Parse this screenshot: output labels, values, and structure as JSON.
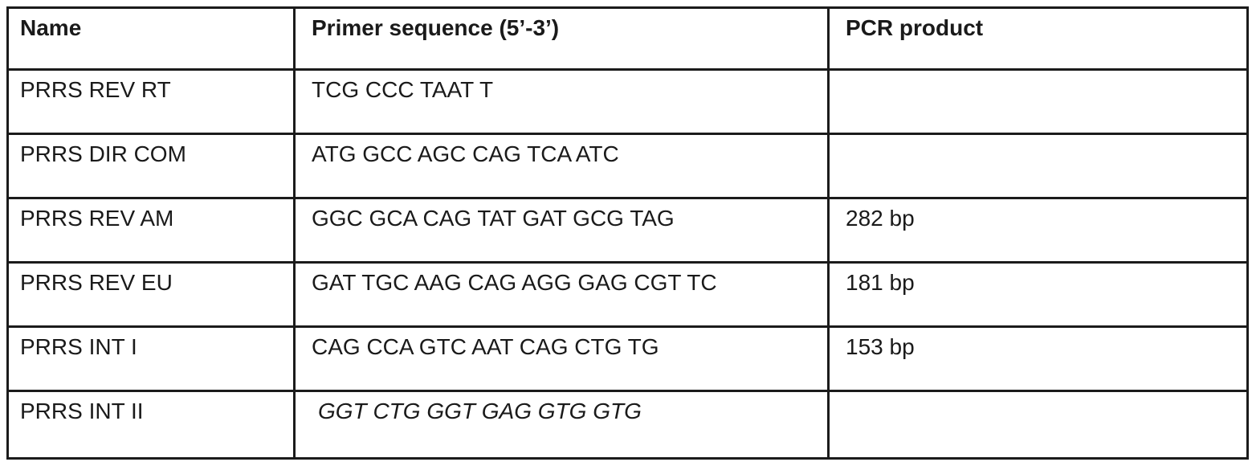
{
  "table": {
    "columns": [
      "Name",
      "Primer sequence (5’-3’)",
      "PCR product"
    ],
    "rows": [
      {
        "name": "PRRS REV RT",
        "sequence": "TCG CCC TAAT T",
        "pcr_product": "",
        "italic": false
      },
      {
        "name": "PRRS DIR COM",
        "sequence": "ATG GCC AGC CAG TCA ATC",
        "pcr_product": "",
        "italic": false
      },
      {
        "name": "PRRS REV AM",
        "sequence": "GGC GCA CAG TAT GAT GCG TAG",
        "pcr_product": "282 bp",
        "italic": false
      },
      {
        "name": "PRRS REV EU",
        "sequence": "GAT TGC AAG CAG AGG GAG CGT TC",
        "pcr_product": "181 bp",
        "italic": false
      },
      {
        "name": "PRRS INT I",
        "sequence": "CAG CCA GTC AAT CAG CTG TG",
        "pcr_product": "153 bp",
        "italic": false
      },
      {
        "name": "PRRS INT II",
        "sequence": "GGT CTG GGT GAG GTG GTG",
        "pcr_product": "",
        "italic": true
      }
    ]
  },
  "colors": {
    "border": "#1b1b1b",
    "text": "#1a1a1a",
    "background": "#ffffff"
  }
}
